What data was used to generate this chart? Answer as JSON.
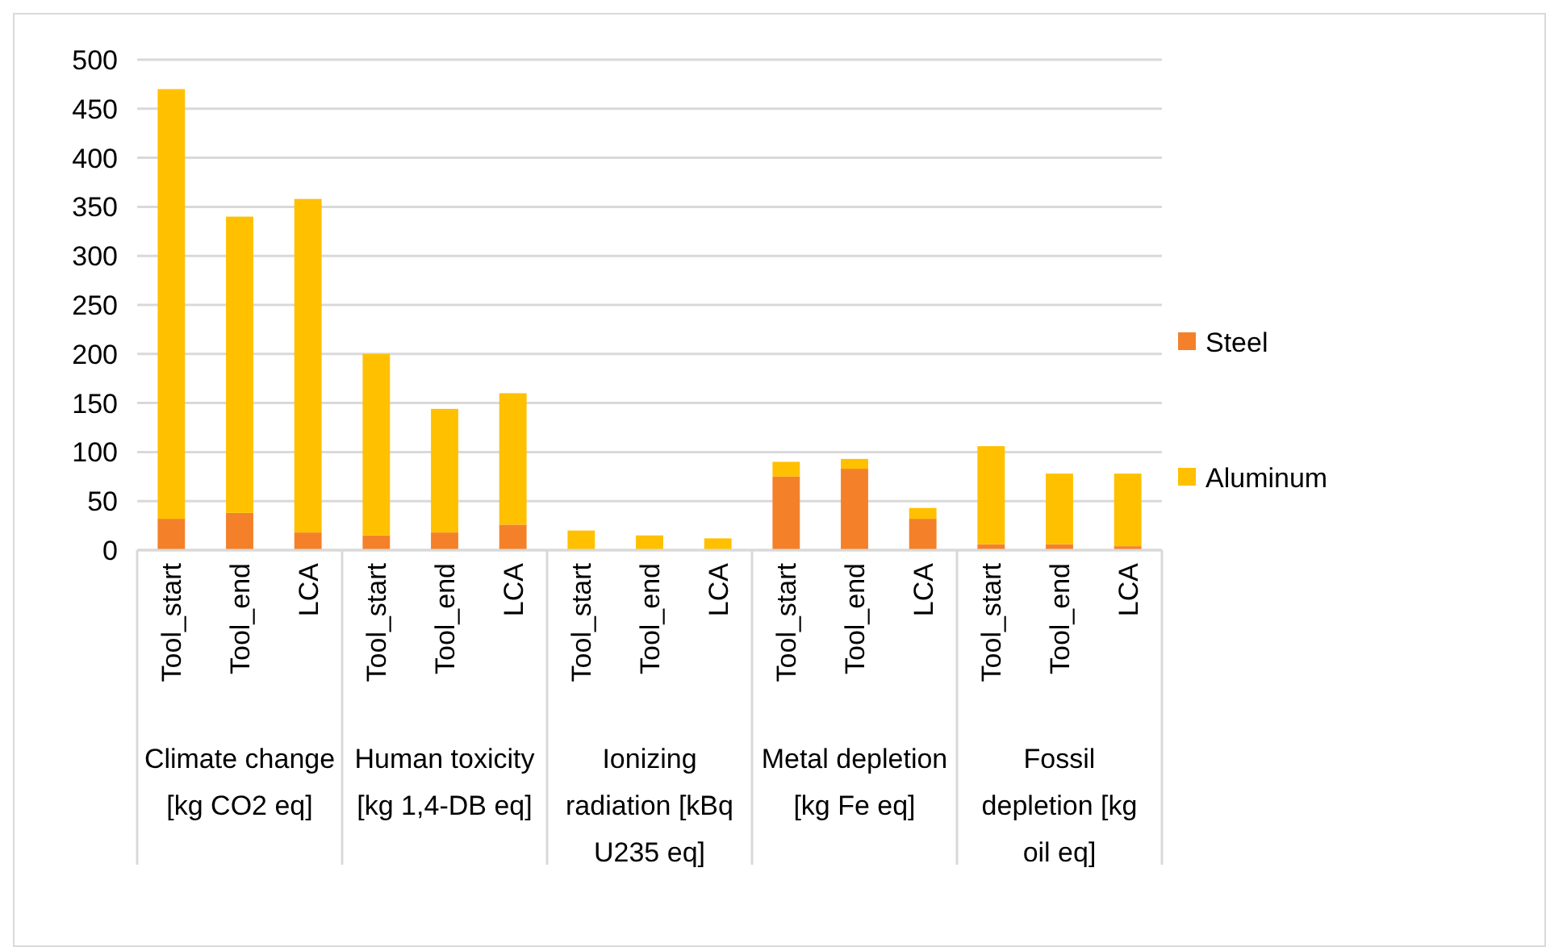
{
  "chart_data": {
    "type": "bar",
    "stacked": true,
    "categories": [
      "Tool_start",
      "Tool_end",
      "LCA",
      "Tool_start",
      "Tool_end",
      "LCA",
      "Tool_start",
      "Tool_end",
      "LCA",
      "Tool_start",
      "Tool_end",
      "LCA",
      "Tool_start",
      "Tool_end",
      "LCA"
    ],
    "series": [
      {
        "name": "Steel",
        "color": "#f4812a",
        "values": [
          32,
          38,
          18,
          15,
          18,
          26,
          0,
          0,
          0,
          75,
          83,
          32,
          6,
          6,
          4
        ]
      },
      {
        "name": "Aluminum",
        "color": "#ffc000",
        "values": [
          438,
          302,
          340,
          185,
          126,
          134,
          20,
          15,
          12,
          15,
          10,
          11,
          100,
          72,
          74
        ]
      }
    ],
    "ylim": [
      0,
      500
    ],
    "yticks": [
      0,
      50,
      100,
      150,
      200,
      250,
      300,
      350,
      400,
      450,
      500
    ],
    "grid": "y",
    "legend": "right",
    "annotations": [
      "Climate change [kg CO2 eq]",
      "Human toxicity [kg 1,4-DB eq]",
      "Ionizing radiation [kBq U235 eq]",
      "Metal depletion [kg Fe eq]",
      "Fossil depletion [kg oil eq]"
    ]
  }
}
